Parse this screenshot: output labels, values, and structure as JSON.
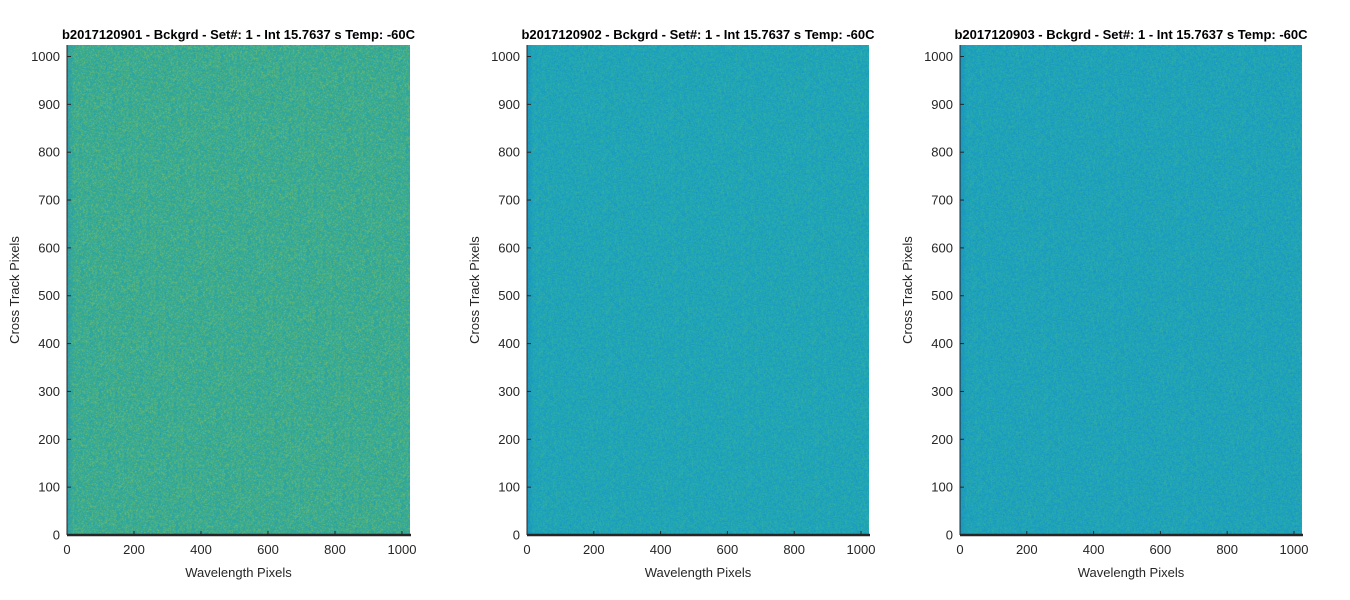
{
  "figure": {
    "background": "#ffffff",
    "noise_shading": "speckled noise image, uniform across frame",
    "colormap": "parula"
  },
  "chart_data": [
    {
      "type": "heatmap",
      "title": "b2017120901 - Bckgrd - Set#: 1 - Int 15.7637 s Temp: -60C",
      "xlabel": "Wavelength Pixels",
      "ylabel": "Cross Track Pixels",
      "xlim": [
        0,
        1024
      ],
      "ylim": [
        0,
        1024
      ],
      "x_ticks": [
        0,
        200,
        400,
        600,
        800,
        1000
      ],
      "y_ticks": [
        0,
        100,
        200,
        300,
        400,
        500,
        600,
        700,
        800,
        900,
        1000
      ],
      "grid": false,
      "base_color": "#3aab8f",
      "light_color": "#7cc06a",
      "dark_color": "#1a9cb8",
      "left_edge_color": "#2196b8"
    },
    {
      "type": "heatmap",
      "title": "b2017120902 - Bckgrd - Set#: 1 - Int 15.7637 s Temp: -60C",
      "xlabel": "Wavelength Pixels",
      "ylabel": "Cross Track Pixels",
      "xlim": [
        0,
        1024
      ],
      "ylim": [
        0,
        1024
      ],
      "x_ticks": [
        0,
        200,
        400,
        600,
        800,
        1000
      ],
      "y_ticks": [
        0,
        100,
        200,
        300,
        400,
        500,
        600,
        700,
        800,
        900,
        1000
      ],
      "grid": false,
      "base_color": "#1fa6b6",
      "light_color": "#3fb39c",
      "dark_color": "#1592c9",
      "left_edge_color": "#168fc4"
    },
    {
      "type": "heatmap",
      "title": "b2017120903 - Bckgrd - Set#: 1 - Int 15.7637 s Temp: -60C",
      "xlabel": "Wavelength Pixels",
      "ylabel": "Cross Track Pixels",
      "xlim": [
        0,
        1024
      ],
      "ylim": [
        0,
        1024
      ],
      "x_ticks": [
        0,
        200,
        400,
        600,
        800,
        1000
      ],
      "y_ticks": [
        0,
        100,
        200,
        300,
        400,
        500,
        600,
        700,
        800,
        900,
        1000
      ],
      "grid": false,
      "base_color": "#1ea4b8",
      "light_color": "#3bb1a0",
      "dark_color": "#1590ca",
      "left_edge_color": "#168ec6"
    }
  ]
}
